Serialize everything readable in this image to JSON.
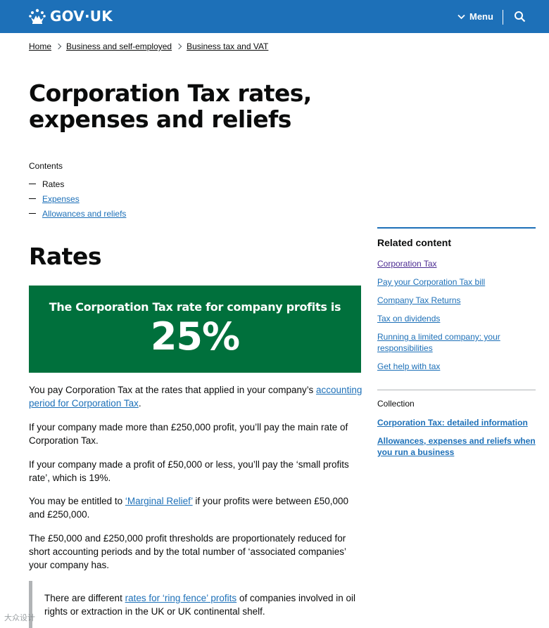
{
  "header": {
    "logo_text": "GOV·UK",
    "menu_label": "Menu",
    "brand_color": "#1d70b8",
    "icons": [
      "crown-icon",
      "chevron-down-icon",
      "search-icon"
    ]
  },
  "breadcrumbs": [
    "Home",
    "Business and self-employed",
    "Business tax and VAT"
  ],
  "page": {
    "title": "Corporation Tax rates, expenses and reliefs",
    "contents": {
      "heading": "Contents",
      "items": [
        {
          "label": "Rates",
          "current": true
        },
        {
          "label": "Expenses",
          "current": false
        },
        {
          "label": "Allowances and reliefs",
          "current": false
        }
      ]
    }
  },
  "rates": {
    "heading": "Rates",
    "callout": {
      "title": "The Corporation Tax rate for company profits is",
      "value": "25%",
      "color": "#00703c"
    },
    "p1": {
      "text": "You pay Corporation Tax at the rates that applied in your company’s",
      "link": "accounting period for Corporation Tax",
      "end": "."
    },
    "p2": "If your company made more than £250,000 profit, you’ll pay the main rate of Corporation Tax.",
    "p3": "If your company made a profit of £50,000 or less, you’ll pay the ‘small profits rate’, which is 19%.",
    "p4": {
      "before": "You may be entitled to",
      "link": "‘Marginal Relief’",
      "after": "if your profits were between £50,000 and £250,000."
    },
    "p5": "The £50,000 and £250,000 profit thresholds are proportionately reduced for short accounting periods and by the total number of ‘associated companies’ your company has.",
    "inset": {
      "before": "There are different",
      "link": "rates for ‘ring fence’ profits",
      "after": "of companies involved in oil rights or extraction in the UK or UK continental shelf."
    }
  },
  "sidebar": {
    "related_heading": "Related content",
    "related": [
      {
        "label": "Corporation Tax",
        "visited": true
      },
      {
        "label": "Pay your Corporation Tax bill",
        "visited": false
      },
      {
        "label": "Company Tax Returns",
        "visited": false
      },
      {
        "label": "Tax on dividends",
        "visited": false
      },
      {
        "label": "Running a limited company: your responsibilities",
        "visited": false
      },
      {
        "label": "Get help with tax",
        "visited": false
      }
    ],
    "collection_heading": "Collection",
    "collection": [
      "Corporation Tax: detailed information",
      "Allowances, expenses and reliefs when you run a business"
    ]
  },
  "watermark": "大众设计"
}
